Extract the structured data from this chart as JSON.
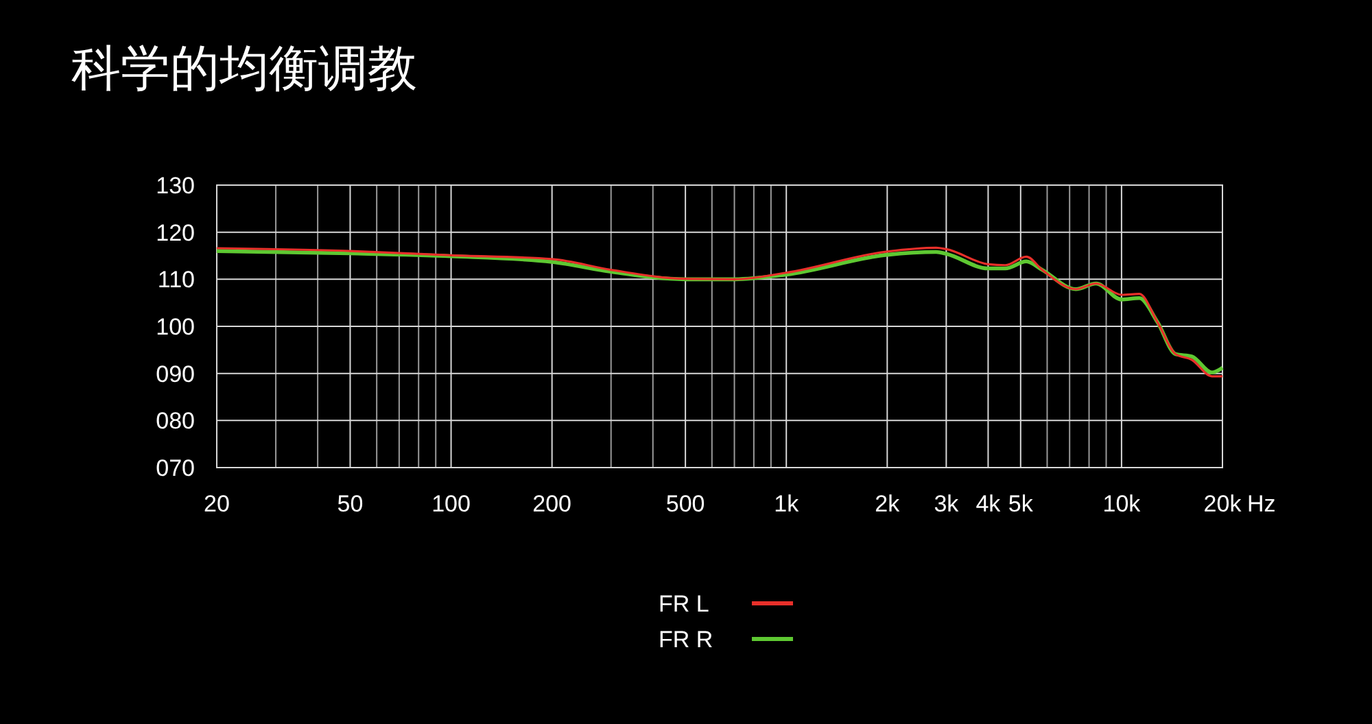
{
  "chart_data": {
    "type": "line",
    "title": "科学的均衡调教",
    "xlabel": "Hz",
    "log": "x",
    "grid": true,
    "legend": "bottom",
    "marker": "none",
    "line_style": "solid",
    "xlim": [
      20,
      20000
    ],
    "ylim": [
      70,
      130
    ],
    "xticks": [
      20,
      {
        "value": 30,
        "label": null
      },
      {
        "value": 40,
        "label": null
      },
      50,
      {
        "value": 60,
        "label": null
      },
      {
        "value": 70,
        "label": null
      },
      {
        "value": 80,
        "label": null
      },
      {
        "value": 90,
        "label": null
      },
      100,
      200,
      {
        "value": 300,
        "label": null
      },
      {
        "value": 400,
        "label": null
      },
      500,
      {
        "value": 600,
        "label": null
      },
      {
        "value": 700,
        "label": null
      },
      {
        "value": 800,
        "label": null
      },
      {
        "value": 900,
        "label": null
      },
      {
        "value": 1000,
        "label": "1k"
      },
      {
        "value": 2000,
        "label": "2k"
      },
      {
        "value": 3000,
        "label": "3k"
      },
      {
        "value": 4000,
        "label": "4k"
      },
      {
        "value": 5000,
        "label": "5k"
      },
      {
        "value": 6000,
        "label": null
      },
      {
        "value": 7000,
        "label": null
      },
      {
        "value": 8000,
        "label": null
      },
      {
        "value": 9000,
        "label": null
      },
      {
        "value": 10000,
        "label": "10k"
      },
      {
        "value": 20000,
        "label": "20k"
      }
    ],
    "yticks": [
      {
        "value": 70,
        "label": "070"
      },
      {
        "value": 80,
        "label": "080"
      },
      {
        "value": 90,
        "label": "090"
      },
      100,
      110,
      120,
      130
    ],
    "series": [
      {
        "name": "FR L",
        "color": "#e8302a",
        "x": [
          20,
          50,
          100,
          200,
          300,
          500,
          700,
          1000,
          2000,
          2800,
          3000,
          4000,
          4500,
          5200,
          5800,
          7300,
          8400,
          10000,
          11300,
          12800,
          14500,
          16200,
          18600,
          20000
        ],
        "values": [
          116.6,
          116.0,
          115.1,
          114.3,
          112.0,
          110.1,
          110.0,
          111.4,
          115.9,
          116.7,
          116.4,
          113.2,
          113.0,
          114.8,
          112.0,
          107.9,
          109.1,
          106.7,
          106.9,
          100.9,
          94.1,
          92.9,
          89.4,
          89.4
        ]
      },
      {
        "name": "FR R",
        "color": "#5ec832",
        "x": [
          20,
          50,
          100,
          200,
          300,
          500,
          700,
          1000,
          2000,
          2800,
          3000,
          4000,
          4500,
          5200,
          5800,
          7300,
          8400,
          10000,
          11300,
          12800,
          14500,
          16200,
          18600,
          20000
        ],
        "values": [
          116.0,
          115.5,
          114.9,
          113.7,
          111.6,
          110.0,
          110.0,
          111.0,
          115.2,
          115.8,
          115.4,
          112.3,
          112.3,
          113.8,
          112.0,
          107.9,
          109.1,
          105.7,
          106.0,
          100.9,
          94.1,
          93.6,
          90.2,
          91.2
        ]
      }
    ]
  }
}
